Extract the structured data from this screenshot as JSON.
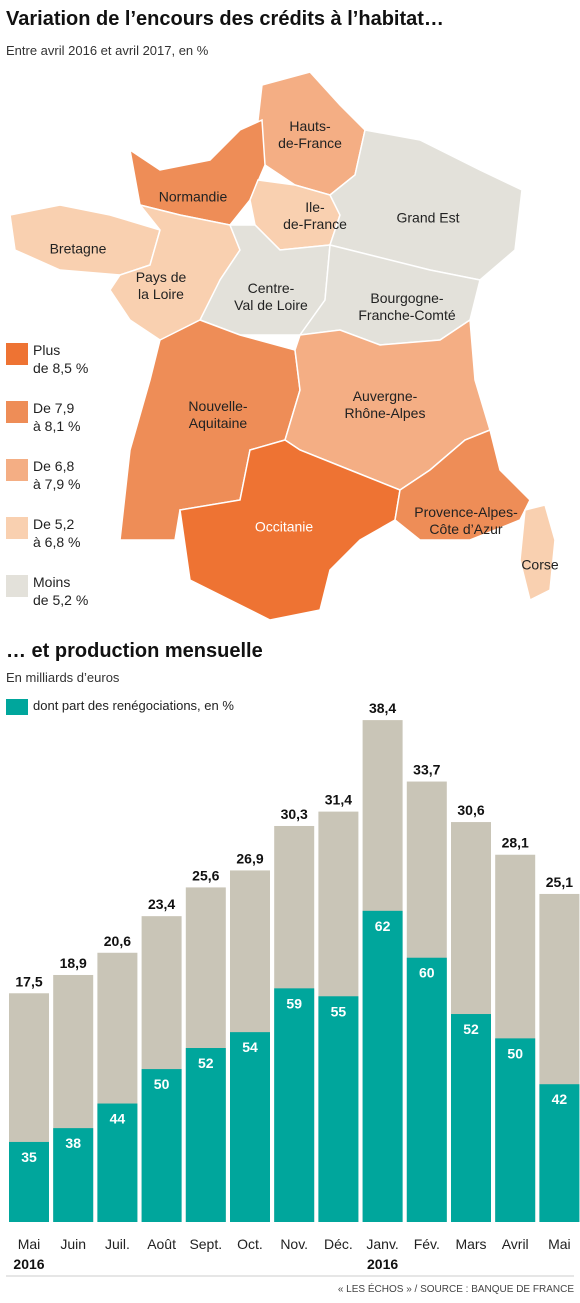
{
  "map": {
    "title": "Variation de l’encours des crédits à l’habitat…",
    "subtitle": "Entre avril 2016 et avril 2017, en %",
    "legend": [
      {
        "label": "Plus\nde 8,5 %",
        "color": "#ee7333"
      },
      {
        "label": "De 7,9\nà 8,1 %",
        "color": "#ee8d57"
      },
      {
        "label": "De 6,8\nà 7,9 %",
        "color": "#f4ae84"
      },
      {
        "label": "De 5,2\nà 6,8 %",
        "color": "#f9d0b0"
      },
      {
        "label": "Moins\nde 5,2 %",
        "color": "#e3e1da"
      }
    ],
    "regions": [
      {
        "name": "Hauts-\nde-France",
        "class": 2
      },
      {
        "name": "Normandie",
        "class": 1
      },
      {
        "name": "Ile-\nde-France",
        "class": 3
      },
      {
        "name": "Grand Est",
        "class": 4
      },
      {
        "name": "Bretagne",
        "class": 3
      },
      {
        "name": "Pays de\nla Loire",
        "class": 3
      },
      {
        "name": "Centre-\nVal de Loire",
        "class": 4
      },
      {
        "name": "Bourgogne-\nFranche-Comté",
        "class": 4
      },
      {
        "name": "Nouvelle-\nAquitaine",
        "class": 1
      },
      {
        "name": "Auvergne-\nRhône-Alpes",
        "class": 2
      },
      {
        "name": "Occitanie",
        "class": 0
      },
      {
        "name": "Provence-Alpes-\nCôte d’Azur",
        "class": 1
      },
      {
        "name": "Corse",
        "class": 3
      }
    ]
  },
  "chart_data": {
    "type": "bar",
    "title": "… et production mensuelle",
    "subtitle": "En milliards d’euros",
    "categories": [
      "Mai",
      "Juin",
      "Juil.",
      "Août",
      "Sept.",
      "Oct.",
      "Nov.",
      "Déc.",
      "Janv.",
      "Fév.",
      "Mars",
      "Avril",
      "Mai"
    ],
    "year_labels": [
      "2016",
      null,
      null,
      null,
      null,
      null,
      null,
      null,
      "2016",
      null,
      null,
      null,
      null
    ],
    "values": [
      17.5,
      18.9,
      20.6,
      23.4,
      25.6,
      26.9,
      30.3,
      31.4,
      38.4,
      33.7,
      30.6,
      28.1,
      25.1
    ],
    "value_labels": [
      "17,5",
      "18,9",
      "20,6",
      "23,4",
      "25,6",
      "26,9",
      "30,3",
      "31,4",
      "38,4",
      "33,7",
      "30,6",
      "28,1",
      "25,1"
    ],
    "color": "#c9c5b7",
    "series": [
      {
        "name": "dont part des renégociations, en %",
        "color": "#00a69c",
        "values": [
          35,
          38,
          44,
          50,
          52,
          54,
          59,
          55,
          62,
          60,
          52,
          50,
          42
        ]
      }
    ],
    "source": "« LES ÉCHOS » / SOURCE : BANQUE DE FRANCE"
  }
}
